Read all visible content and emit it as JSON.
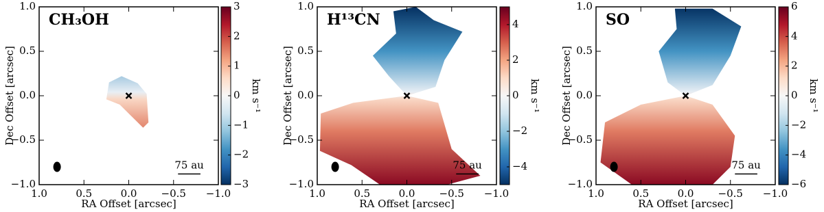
{
  "chart_data": [
    {
      "type": "velocity-map",
      "title": "CH₃OH",
      "xlabel": "RA Offset [arcsec]",
      "ylabel": "Dec Offset [arcsec]",
      "xlim": [
        1,
        -1
      ],
      "ylim": [
        -1,
        1
      ],
      "xticks": [
        {
          "value": 1,
          "label": "1.0"
        },
        0.5,
        {
          "value": 0,
          "label": "0.0"
        },
        {
          "value": -0.5,
          "label": "−0.5"
        },
        {
          "value": -1,
          "label": "−1.0"
        }
      ],
      "yticks": [
        {
          "value": 1,
          "label": "1.0"
        },
        0.5,
        {
          "value": 0,
          "label": "0.0"
        },
        {
          "value": -0.5,
          "label": "−0.5"
        },
        {
          "value": -1,
          "label": "−1.0"
        }
      ],
      "colorbar": {
        "label": "km s⁻¹",
        "lim": [
          -3,
          3
        ],
        "ticks": [
          3,
          2,
          1,
          0,
          {
            "value": -1,
            "label": "−1"
          },
          {
            "value": -2,
            "label": "−2"
          },
          {
            "value": -3,
            "label": "−3"
          }
        ]
      },
      "scalebar": "75 au",
      "source": {
        "x": 0,
        "y": 0
      }
    },
    {
      "type": "velocity-map",
      "title": "H¹³CN",
      "xlabel": "RA Offset [arcsec]",
      "ylabel": "Dec Offset [arcsec]",
      "xlim": [
        1,
        -1
      ],
      "ylim": [
        -1,
        1
      ],
      "xticks": [
        {
          "value": 1,
          "label": "1.0"
        },
        0.5,
        {
          "value": 0,
          "label": "0.0"
        },
        {
          "value": -0.5,
          "label": "−0.5"
        },
        {
          "value": -1,
          "label": "−1.0"
        }
      ],
      "yticks": [
        {
          "value": 1,
          "label": "1.0"
        },
        0.5,
        {
          "value": 0,
          "label": "0.0"
        },
        {
          "value": -0.5,
          "label": "−0.5"
        },
        {
          "value": -1,
          "label": "−1.0"
        }
      ],
      "colorbar": {
        "label": "km s⁻¹",
        "lim": [
          -5,
          5
        ],
        "ticks": [
          4,
          2,
          0,
          {
            "value": -2,
            "label": "−2"
          },
          {
            "value": -4,
            "label": "−4"
          }
        ]
      },
      "scalebar": "75 au",
      "source": {
        "x": 0,
        "y": 0
      }
    },
    {
      "type": "velocity-map",
      "title": "SO",
      "xlabel": "RA Offset [arcsec]",
      "ylabel": "Dec Offset [arcsec]",
      "xlim": [
        1,
        -1
      ],
      "ylim": [
        -1,
        1
      ],
      "xticks": [
        {
          "value": 1,
          "label": "1.0"
        },
        0.5,
        {
          "value": 0,
          "label": "0.0"
        },
        {
          "value": -0.5,
          "label": "−0.5"
        },
        {
          "value": -1,
          "label": "−1.0"
        }
      ],
      "yticks": [
        {
          "value": 1,
          "label": "1.0"
        },
        0.5,
        {
          "value": 0,
          "label": "0.0"
        },
        {
          "value": -0.5,
          "label": "−0.5"
        },
        {
          "value": -1,
          "label": "−1.0"
        }
      ],
      "colorbar": {
        "label": "km s⁻¹",
        "lim": [
          -6,
          6
        ],
        "ticks": [
          6,
          4,
          2,
          0,
          {
            "value": -2,
            "label": "−2"
          },
          {
            "value": -4,
            "label": "−4"
          },
          {
            "value": -6,
            "label": "−6"
          }
        ]
      },
      "scalebar": "75 au",
      "source": {
        "x": 0,
        "y": 0
      }
    }
  ]
}
